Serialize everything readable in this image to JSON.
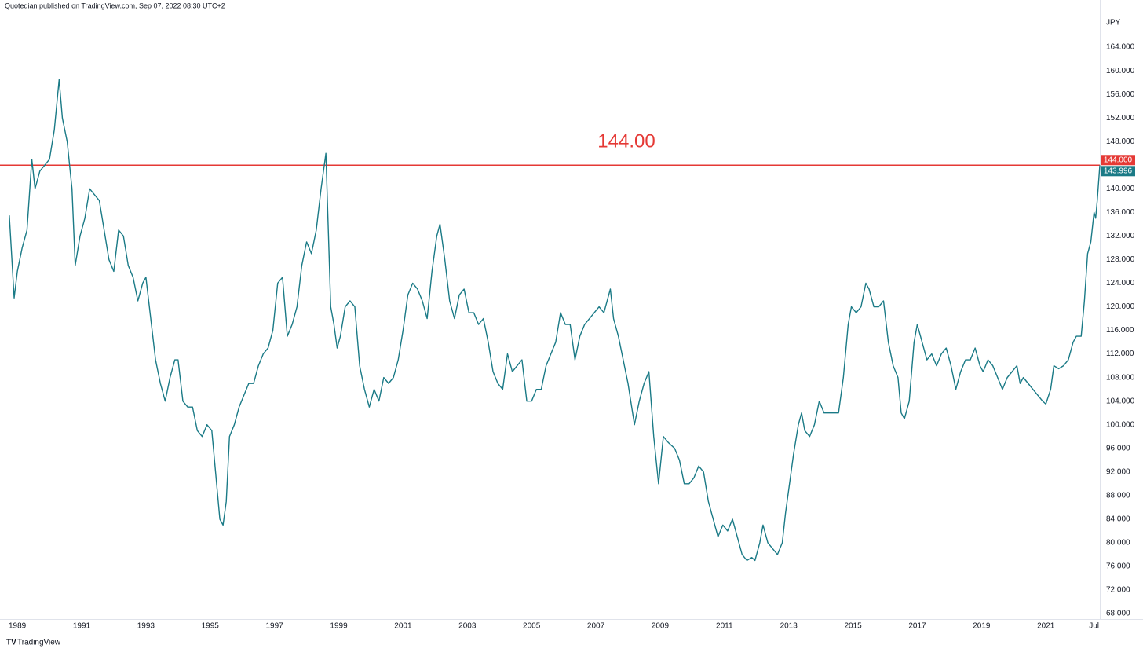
{
  "chart_data": {
    "type": "line",
    "header": "Quotedian published on TradingView.com, Sep 07, 2022 08:30 UTC+2",
    "y_axis_label": "JPY",
    "branding": "TradingView",
    "color": "#1a7a86",
    "grid": false,
    "xlim": [
      1988.46,
      2022.68
    ],
    "ylim": [
      67.07,
      172
    ],
    "xticks": [
      1989,
      1991,
      1993,
      1995,
      1997,
      1999,
      2001,
      2003,
      2005,
      2007,
      2009,
      2011,
      2013,
      2015,
      2017,
      2019,
      2021,
      {
        "value": 2022.5,
        "label": "Jul"
      }
    ],
    "yticks": [
      {
        "value": 68,
        "label": "68.000"
      },
      {
        "value": 72,
        "label": "72.000"
      },
      {
        "value": 76,
        "label": "76.000"
      },
      {
        "value": 80,
        "label": "80.000"
      },
      {
        "value": 84,
        "label": "84.000"
      },
      {
        "value": 88,
        "label": "88.000"
      },
      {
        "value": 92,
        "label": "92.000"
      },
      {
        "value": 96,
        "label": "96.000"
      },
      {
        "value": 100,
        "label": "100.000"
      },
      {
        "value": 104,
        "label": "104.000"
      },
      {
        "value": 108,
        "label": "108.000"
      },
      {
        "value": 112,
        "label": "112.000"
      },
      {
        "value": 116,
        "label": "116.000"
      },
      {
        "value": 120,
        "label": "120.000"
      },
      {
        "value": 124,
        "label": "124.000"
      },
      {
        "value": 128,
        "label": "128.000"
      },
      {
        "value": 132,
        "label": "132.000"
      },
      {
        "value": 136,
        "label": "136.000"
      },
      {
        "value": 140,
        "label": "140.000"
      },
      {
        "value": 148,
        "label": "148.000"
      },
      {
        "value": 152,
        "label": "152.000"
      },
      {
        "value": 156,
        "label": "156.000"
      },
      {
        "value": 160,
        "label": "160.000"
      },
      {
        "value": 164,
        "label": "164.000"
      }
    ],
    "hline": {
      "value": 144,
      "color": "#e53935",
      "label": "144.00",
      "price_label": "144.000"
    },
    "last_value_label": "143.996",
    "x": [
      1988.75,
      1988.9,
      1989.0,
      1989.15,
      1989.3,
      1989.45,
      1989.55,
      1989.7,
      1989.85,
      1990.0,
      1990.15,
      1990.3,
      1990.4,
      1990.55,
      1990.7,
      1990.8,
      1990.95,
      1991.1,
      1991.25,
      1991.4,
      1991.55,
      1991.7,
      1991.85,
      1992.0,
      1992.15,
      1992.3,
      1992.45,
      1992.6,
      1992.75,
      1992.9,
      1993.0,
      1993.15,
      1993.3,
      1993.45,
      1993.6,
      1993.75,
      1993.9,
      1994.0,
      1994.15,
      1994.3,
      1994.45,
      1994.6,
      1994.75,
      1994.9,
      1995.05,
      1995.2,
      1995.3,
      1995.4,
      1995.5,
      1995.6,
      1995.75,
      1995.9,
      1996.05,
      1996.2,
      1996.35,
      1996.5,
      1996.65,
      1996.8,
      1996.95,
      1997.1,
      1997.25,
      1997.4,
      1997.55,
      1997.7,
      1997.85,
      1998.0,
      1998.15,
      1998.3,
      1998.45,
      1998.6,
      1998.75,
      1998.85,
      1998.95,
      1999.05,
      1999.2,
      1999.35,
      1999.5,
      1999.65,
      1999.8,
      1999.95,
      2000.1,
      2000.25,
      2000.4,
      2000.55,
      2000.7,
      2000.85,
      2001.0,
      2001.15,
      2001.3,
      2001.45,
      2001.6,
      2001.75,
      2001.9,
      2002.05,
      2002.15,
      2002.3,
      2002.45,
      2002.6,
      2002.75,
      2002.9,
      2003.05,
      2003.2,
      2003.35,
      2003.5,
      2003.65,
      2003.8,
      2003.95,
      2004.1,
      2004.25,
      2004.4,
      2004.55,
      2004.7,
      2004.85,
      2005.0,
      2005.15,
      2005.3,
      2005.45,
      2005.6,
      2005.75,
      2005.9,
      2006.05,
      2006.2,
      2006.35,
      2006.5,
      2006.65,
      2006.8,
      2006.95,
      2007.1,
      2007.25,
      2007.45,
      2007.55,
      2007.7,
      2007.85,
      2008.0,
      2008.2,
      2008.35,
      2008.5,
      2008.65,
      2008.8,
      2008.95,
      2009.1,
      2009.25,
      2009.45,
      2009.6,
      2009.75,
      2009.9,
      2010.05,
      2010.2,
      2010.35,
      2010.5,
      2010.65,
      2010.8,
      2010.95,
      2011.1,
      2011.25,
      2011.4,
      2011.55,
      2011.7,
      2011.85,
      2011.95,
      2012.1,
      2012.2,
      2012.35,
      2012.5,
      2012.65,
      2012.8,
      2012.9,
      2013.0,
      2013.15,
      2013.3,
      2013.4,
      2013.5,
      2013.65,
      2013.8,
      2013.95,
      2014.1,
      2014.25,
      2014.4,
      2014.55,
      2014.7,
      2014.85,
      2014.95,
      2015.1,
      2015.25,
      2015.4,
      2015.5,
      2015.65,
      2015.8,
      2015.95,
      2016.1,
      2016.25,
      2016.4,
      2016.5,
      2016.6,
      2016.75,
      2016.9,
      2017.0,
      2017.15,
      2017.3,
      2017.45,
      2017.6,
      2017.75,
      2017.9,
      2018.05,
      2018.2,
      2018.35,
      2018.5,
      2018.65,
      2018.8,
      2018.95,
      2019.05,
      2019.2,
      2019.35,
      2019.5,
      2019.65,
      2019.8,
      2019.95,
      2020.1,
      2020.2,
      2020.3,
      2020.45,
      2020.6,
      2020.75,
      2020.9,
      2021.0,
      2021.15,
      2021.25,
      2021.4,
      2021.55,
      2021.7,
      2021.85,
      2021.95,
      2022.1,
      2022.2,
      2022.3,
      2022.4,
      2022.5,
      2022.55,
      2022.6,
      2022.68
    ],
    "values": [
      135.5,
      121.5,
      126,
      130,
      133,
      145,
      140,
      143,
      144,
      145,
      150,
      158.5,
      152,
      148,
      140,
      127,
      132,
      135,
      140,
      139,
      138,
      133,
      128,
      126,
      133,
      132,
      127,
      125,
      121,
      124,
      125,
      118,
      111,
      107,
      104,
      108,
      111,
      111,
      104,
      103,
      103,
      99,
      98,
      100,
      99,
      90,
      84,
      83,
      87,
      98,
      100,
      103,
      105,
      107,
      107,
      110,
      112,
      113,
      116,
      124,
      125,
      115,
      117,
      120,
      127,
      131,
      129,
      133,
      140,
      146,
      120,
      117,
      113,
      115,
      120,
      121,
      120,
      110,
      106,
      103,
      106,
      104,
      108,
      107,
      108,
      111,
      116,
      122,
      124,
      123,
      121,
      118,
      126,
      132,
      134,
      128,
      121,
      118,
      122,
      123,
      119,
      119,
      117,
      118,
      114,
      109,
      107,
      106,
      112,
      109,
      110,
      111,
      104,
      104,
      106,
      106,
      110,
      112,
      114,
      119,
      117,
      117,
      111,
      115,
      117,
      118,
      119,
      120,
      119,
      123,
      118,
      115,
      111,
      107,
      100,
      104,
      107,
      109,
      98,
      90,
      98,
      97,
      96,
      94,
      90,
      90,
      91,
      93,
      92,
      87,
      84,
      81,
      83,
      82,
      84,
      81,
      78,
      77,
      77.5,
      77,
      80,
      83,
      80,
      79,
      78,
      80,
      85,
      89,
      95,
      100,
      102,
      99,
      98,
      100,
      104,
      102,
      102,
      102,
      102,
      108,
      117,
      120,
      119,
      120,
      124,
      123,
      120,
      120,
      121,
      114,
      110,
      108,
      102,
      101,
      104,
      114,
      117,
      114,
      111,
      112,
      110,
      112,
      113,
      110,
      106,
      109,
      111,
      111,
      113,
      110,
      109,
      111,
      110,
      108,
      106,
      108,
      109,
      110,
      107,
      108,
      107,
      106,
      105,
      104,
      103.5,
      106,
      110,
      109.5,
      110,
      111,
      114,
      115,
      115,
      121,
      129,
      131,
      136,
      135,
      138,
      143.996
    ]
  }
}
